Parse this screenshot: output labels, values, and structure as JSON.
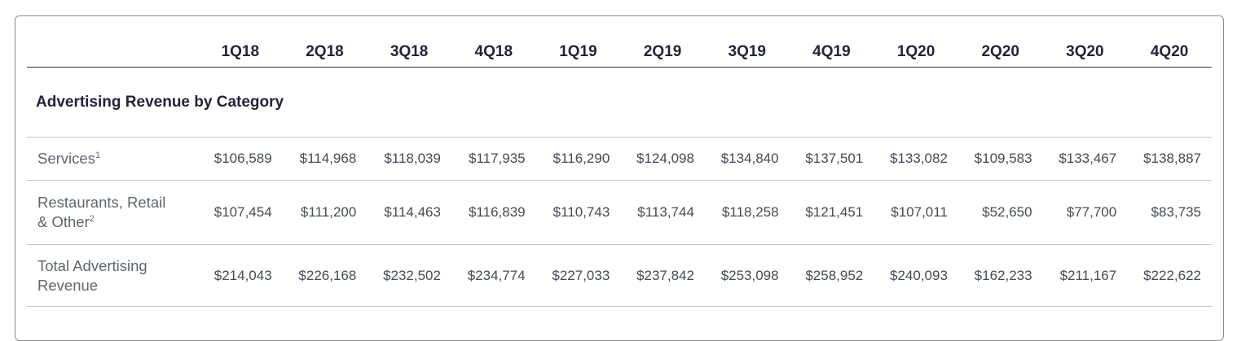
{
  "table": {
    "columns": [
      "1Q18",
      "2Q18",
      "3Q18",
      "4Q18",
      "1Q19",
      "2Q19",
      "3Q19",
      "4Q19",
      "1Q20",
      "2Q20",
      "3Q20",
      "4Q20"
    ],
    "section_title": "Advertising Revenue by Category",
    "rows": [
      {
        "label_line1": "Services",
        "label_line2": "",
        "footnote": "1",
        "values": [
          "$106,589",
          "$114,968",
          "$118,039",
          "$117,935",
          "$116,290",
          "$124,098",
          "$134,840",
          "$137,501",
          "$133,082",
          "$109,583",
          "$133,467",
          "$138,887"
        ]
      },
      {
        "label_line1": "Restaurants, Retail",
        "label_line2": "& Other",
        "footnote": "2",
        "values": [
          "$107,454",
          "$111,200",
          "$114,463",
          "$116,839",
          "$110,743",
          "$113,744",
          "$118,258",
          "$121,451",
          "$107,011",
          "$52,650",
          "$77,700",
          "$83,735"
        ]
      },
      {
        "label_line1": "Total Advertising",
        "label_line2": "Revenue",
        "footnote": "",
        "values": [
          "$214,043",
          "$226,168",
          "$232,502",
          "$234,774",
          "$227,033",
          "$237,842",
          "$253,098",
          "$258,952",
          "$240,093",
          "$162,233",
          "$211,167",
          "$222,622"
        ]
      }
    ]
  }
}
